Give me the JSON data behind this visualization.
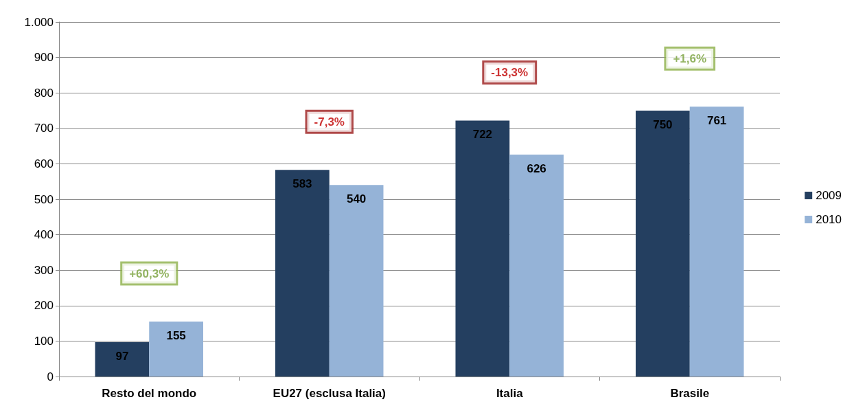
{
  "chart_data": {
    "type": "bar",
    "categories": [
      "Resto del mondo",
      "EU27 (esclusa Italia)",
      "Italia",
      "Brasile"
    ],
    "series": [
      {
        "name": "2009",
        "color": "#243f60",
        "values": [
          97,
          583,
          722,
          750
        ]
      },
      {
        "name": "2010",
        "color": "#95b3d7",
        "values": [
          155,
          540,
          626,
          761
        ]
      }
    ],
    "ylim": [
      0,
      1000
    ],
    "yticks": [
      0,
      100,
      200,
      300,
      400,
      500,
      600,
      700,
      800,
      900,
      {
        "value": 1000,
        "label": "1.000"
      }
    ],
    "grid": "y",
    "legend": "right",
    "data_labels": true,
    "annotations": [
      "+60,3%",
      "-7,3%",
      "-13,3%",
      "+1,6%"
    ]
  }
}
